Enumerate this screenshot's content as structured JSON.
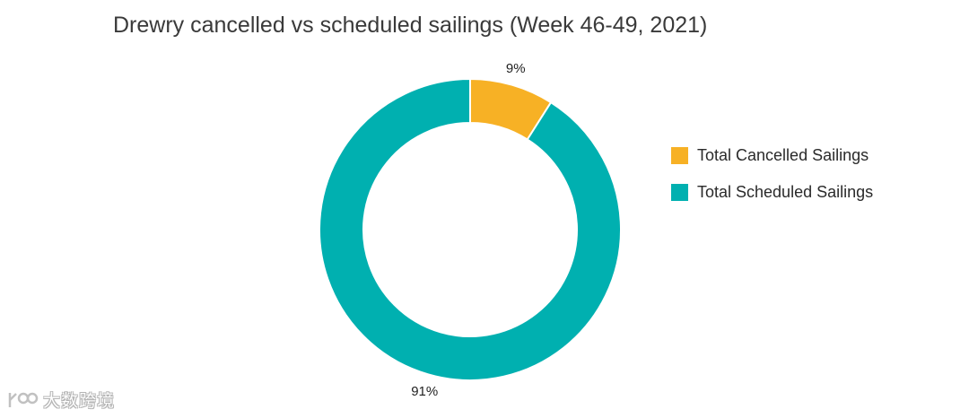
{
  "chart_data": {
    "type": "pie",
    "variant": "donut",
    "title": "Drewry cancelled vs scheduled sailings (Week 46-49, 2021)",
    "categories": [
      "Total Cancelled Sailings",
      "Total Scheduled Sailings"
    ],
    "values": [
      9,
      91
    ],
    "labels": [
      "9%",
      "91%"
    ],
    "colors": [
      "#F7B125",
      "#00B0B0"
    ],
    "legend_position": "right"
  },
  "watermark": {
    "text": "大数跨境"
  }
}
